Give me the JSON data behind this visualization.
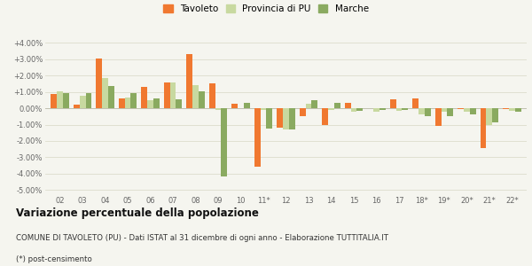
{
  "years": [
    "02",
    "03",
    "04",
    "05",
    "06",
    "07",
    "08",
    "09",
    "10",
    "11*",
    "12",
    "13",
    "14",
    "15",
    "16",
    "17",
    "18*",
    "19*",
    "20*",
    "21*",
    "22*"
  ],
  "tavoleto": [
    0.85,
    0.2,
    3.05,
    0.6,
    1.3,
    1.6,
    3.3,
    1.5,
    0.3,
    -3.55,
    -1.2,
    -0.5,
    -1.05,
    0.35,
    0.0,
    0.55,
    0.6,
    -1.1,
    -0.05,
    -2.45,
    -0.05
  ],
  "provincia_pu": [
    1.05,
    0.75,
    1.85,
    0.65,
    0.5,
    1.6,
    1.4,
    -0.1,
    0.0,
    -0.1,
    -1.3,
    0.25,
    -0.1,
    -0.2,
    -0.2,
    -0.15,
    -0.35,
    -0.2,
    -0.2,
    -1.0,
    -0.15
  ],
  "marche": [
    0.95,
    0.95,
    1.35,
    0.95,
    0.6,
    0.55,
    1.05,
    -4.15,
    0.35,
    -1.25,
    -1.3,
    0.5,
    0.35,
    -0.15,
    -0.1,
    -0.1,
    -0.5,
    -0.5,
    -0.35,
    -0.85,
    -0.2
  ],
  "color_tavoleto": "#f07830",
  "color_provincia": "#c8d9a0",
  "color_marche": "#8aaa60",
  "title": "Variazione percentuale della popolazione",
  "subtitle": "COMUNE DI TAVOLETO (PU) - Dati ISTAT al 31 dicembre di ogni anno - Elaborazione TUTTITALIA.IT",
  "footnote": "(*) post-censimento",
  "ylim": [
    -5.25,
    4.5
  ],
  "yticks": [
    -5.0,
    -4.0,
    -3.0,
    -2.0,
    -1.0,
    0.0,
    1.0,
    2.0,
    3.0,
    4.0
  ],
  "background_color": "#f5f5ef",
  "grid_color": "#ddddcc"
}
